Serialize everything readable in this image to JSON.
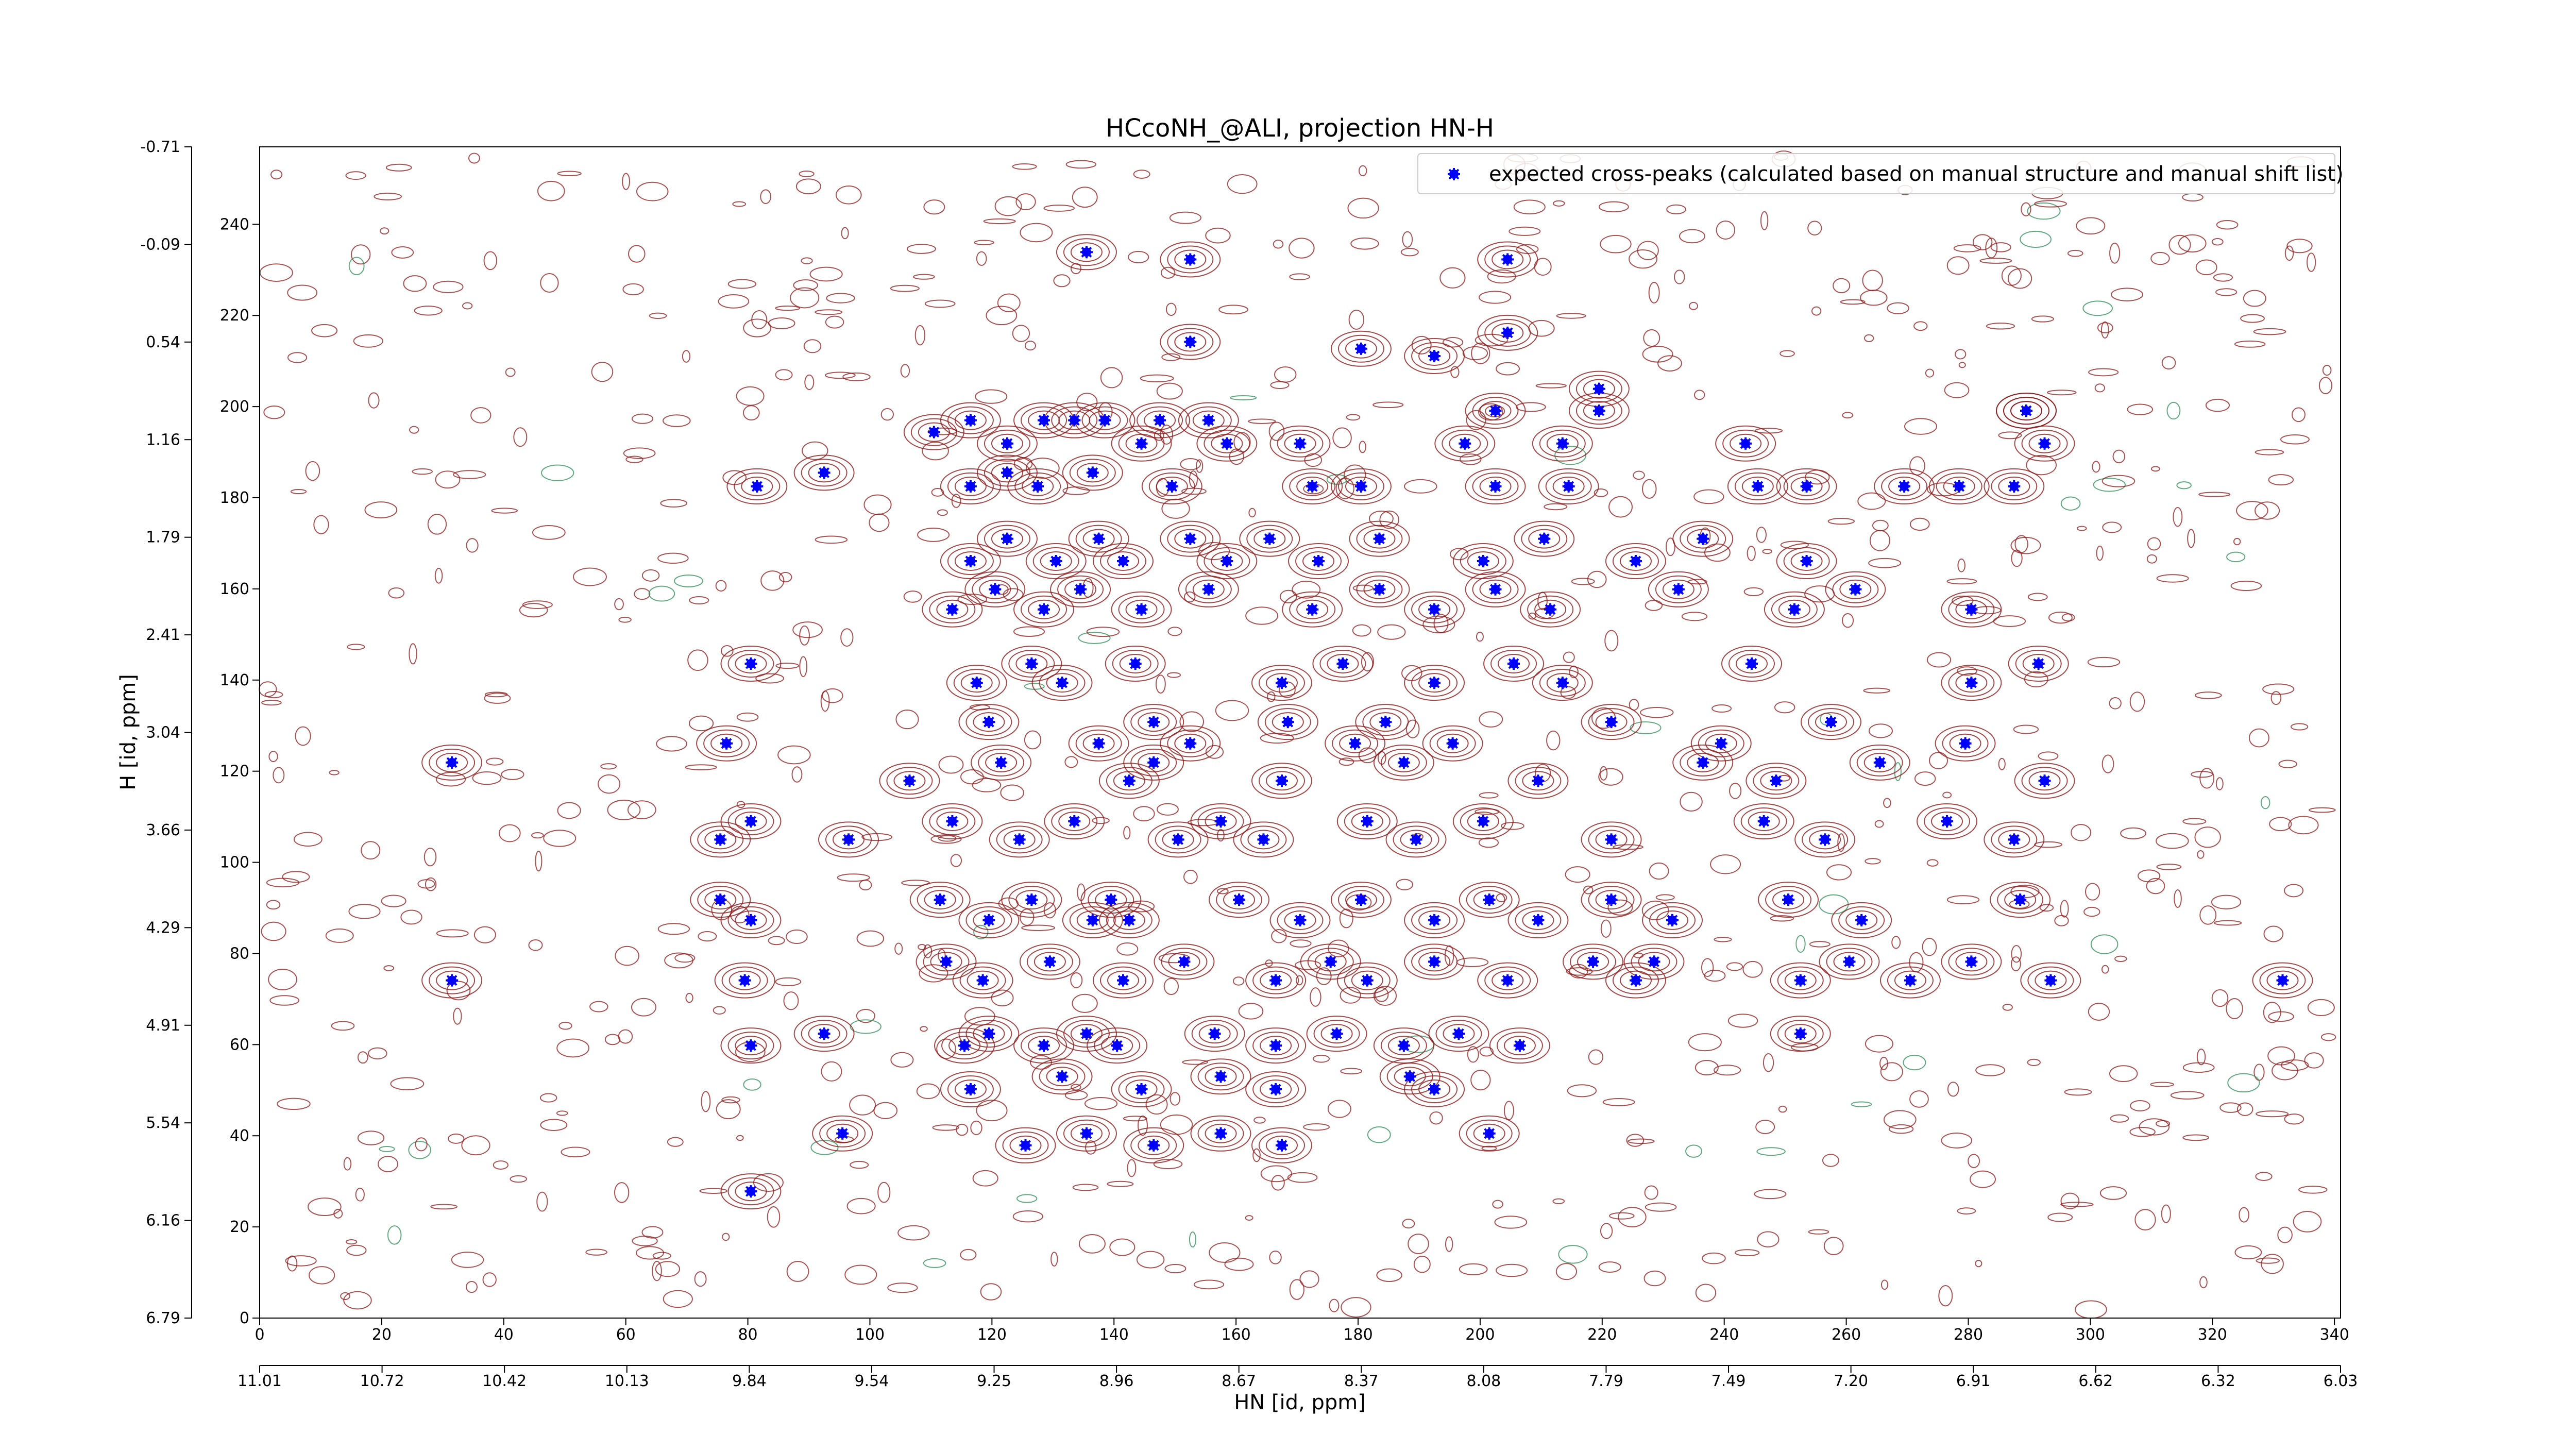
{
  "chart_data": {
    "type": "scatter",
    "title": "HCcoNH_@ALI, projection HN-H",
    "xlabel": "HN [id, ppm]",
    "ylabel": "H [id, ppm]",
    "xlim": [
      0,
      341
    ],
    "ylim": [
      0,
      257
    ],
    "x_index_ticks": [
      "0",
      "20",
      "40",
      "60",
      "80",
      "100",
      "120",
      "140",
      "160",
      "180",
      "200",
      "220",
      "240",
      "260",
      "280",
      "300",
      "320",
      "340"
    ],
    "x_ppm_ticks": [
      "11.01",
      "10.72",
      "10.42",
      "10.13",
      "9.84",
      "9.54",
      "9.25",
      "8.96",
      "8.67",
      "8.37",
      "8.08",
      "7.79",
      "7.49",
      "7.20",
      "6.91",
      "6.62",
      "6.32",
      "6.03"
    ],
    "y_index_ticks": [
      "0",
      "20",
      "40",
      "60",
      "80",
      "100",
      "120",
      "140",
      "160",
      "180",
      "200",
      "220",
      "240"
    ],
    "y_ppm_ticks": [
      "6.79",
      "6.16",
      "5.54",
      "4.91",
      "4.29",
      "3.66",
      "3.04",
      "2.41",
      "1.79",
      "1.16",
      "0.54",
      "-0.09",
      "-0.71"
    ],
    "legend": {
      "placement": "top-right",
      "entries": [
        "expected cross-peaks (calculated based on manual structure and manual shift list)"
      ]
    },
    "colors": {
      "marker": "#0000ff",
      "positive_contour": "#8b1a1a",
      "negative_contour": "#2e8b57"
    },
    "series": [
      {
        "name": "expected cross-peaks (calculated based on manual structure and manual shift list)",
        "x": [
          135.5,
          152.5,
          204.5,
          204.5,
          152.5,
          180.5,
          192.5,
          219.5,
          202.5,
          219.5,
          289.5,
          289.5,
          116.5,
          128.5,
          133.5,
          138.5,
          147.5,
          155.5,
          110.5,
          122.5,
          144.5,
          158.5,
          170.5,
          197.5,
          213.5,
          243.5,
          292.5,
          81.5,
          92.5,
          116.5,
          122.5,
          127.5,
          136.5,
          149.5,
          172.5,
          180.5,
          202.5,
          214.5,
          245.5,
          253.5,
          269.5,
          278.5,
          287.5,
          116.5,
          122.5,
          130.5,
          137.5,
          141.5,
          152.5,
          158.5,
          165.5,
          173.5,
          183.5,
          200.5,
          210.5,
          225.5,
          236.5,
          253.5,
          113.5,
          120.5,
          128.5,
          134.5,
          144.5,
          155.5,
          172.5,
          183.5,
          192.5,
          202.5,
          211.5,
          232.5,
          251.5,
          261.5,
          280.5,
          80.5,
          117.5,
          126.5,
          131.5,
          143.5,
          167.5,
          177.5,
          192.5,
          205.5,
          213.5,
          244.5,
          280.5,
          291.5,
          76.5,
          119.5,
          137.5,
          146.5,
          152.5,
          168.5,
          179.5,
          184.5,
          195.5,
          221.5,
          239.5,
          257.5,
          279.5,
          31.5,
          106.5,
          121.5,
          142.5,
          146.5,
          167.5,
          187.5,
          209.5,
          236.5,
          248.5,
          265.5,
          292.5,
          75.5,
          80.5,
          96.5,
          113.5,
          124.5,
          133.5,
          150.5,
          157.5,
          164.5,
          181.5,
          189.5,
          200.5,
          221.5,
          246.5,
          256.5,
          276.5,
          287.5,
          75.5,
          80.5,
          111.5,
          119.5,
          126.5,
          136.5,
          139.5,
          142.5,
          160.5,
          170.5,
          180.5,
          192.5,
          201.5,
          209.5,
          221.5,
          231.5,
          250.5,
          262.5,
          288.5,
          31.5,
          79.5,
          112.5,
          118.5,
          129.5,
          141.5,
          151.5,
          166.5,
          175.5,
          181.5,
          192.5,
          204.5,
          218.5,
          225.5,
          228.5,
          252.5,
          260.5,
          270.5,
          280.5,
          293.5,
          331.5,
          80.5,
          92.5,
          115.5,
          119.5,
          128.5,
          135.5,
          140.5,
          156.5,
          166.5,
          176.5,
          187.5,
          196.5,
          206.5,
          252.5,
          116.5,
          131.5,
          144.5,
          157.5,
          166.5,
          188.5,
          192.5,
          95.5,
          125.5,
          135.5,
          146.5,
          157.5,
          167.5,
          201.5,
          80.5
        ],
        "y": [
          233.9,
          232.3,
          232.3,
          216.2,
          214.2,
          212.7,
          211.1,
          203.9,
          199.1,
          199.1,
          199.1,
          199.1,
          197.0,
          197.0,
          197.0,
          197.0,
          197.0,
          197.0,
          194.4,
          191.9,
          191.9,
          191.9,
          191.9,
          191.9,
          191.9,
          191.9,
          191.9,
          182.5,
          185.5,
          182.5,
          185.5,
          182.5,
          185.5,
          182.5,
          182.5,
          182.5,
          182.5,
          182.5,
          182.5,
          182.5,
          182.5,
          182.5,
          182.5,
          166.1,
          171.0,
          166.1,
          171.0,
          166.1,
          171.0,
          166.1,
          171.0,
          166.1,
          171.0,
          166.1,
          171.0,
          166.1,
          171.0,
          166.1,
          155.5,
          159.9,
          155.5,
          159.9,
          155.5,
          159.9,
          155.5,
          159.9,
          155.5,
          159.9,
          155.5,
          159.9,
          155.5,
          159.9,
          155.5,
          143.6,
          139.4,
          143.6,
          139.4,
          143.6,
          139.4,
          143.6,
          139.4,
          143.6,
          139.4,
          143.6,
          139.4,
          143.6,
          126.1,
          130.8,
          126.1,
          130.8,
          126.1,
          130.8,
          126.1,
          130.8,
          126.1,
          130.8,
          126.1,
          130.8,
          126.1,
          121.9,
          117.9,
          121.9,
          117.9,
          121.9,
          117.9,
          121.9,
          117.9,
          121.9,
          117.9,
          121.9,
          117.9,
          105.0,
          109.0,
          105.0,
          109.0,
          105.0,
          109.0,
          105.0,
          109.0,
          105.0,
          109.0,
          105.0,
          109.0,
          105.0,
          109.0,
          105.0,
          109.0,
          105.0,
          91.8,
          87.3,
          91.8,
          87.3,
          91.8,
          87.3,
          91.8,
          87.3,
          91.8,
          87.3,
          91.8,
          87.3,
          91.8,
          87.3,
          91.8,
          87.3,
          91.8,
          87.3,
          91.8,
          74.1,
          74.1,
          78.2,
          74.1,
          78.2,
          74.1,
          78.2,
          74.1,
          78.2,
          74.1,
          78.2,
          74.1,
          78.2,
          74.1,
          78.2,
          74.1,
          78.2,
          74.1,
          78.2,
          74.1,
          74.1,
          59.8,
          62.4,
          59.8,
          62.4,
          59.8,
          62.4,
          59.8,
          62.4,
          59.8,
          62.4,
          59.8,
          62.4,
          59.8,
          62.4,
          50.2,
          53.0,
          50.2,
          53.0,
          50.2,
          53.0,
          50.2,
          40.5,
          37.9,
          40.5,
          37.9,
          40.5,
          37.9,
          40.5,
          27.8
        ]
      }
    ]
  }
}
